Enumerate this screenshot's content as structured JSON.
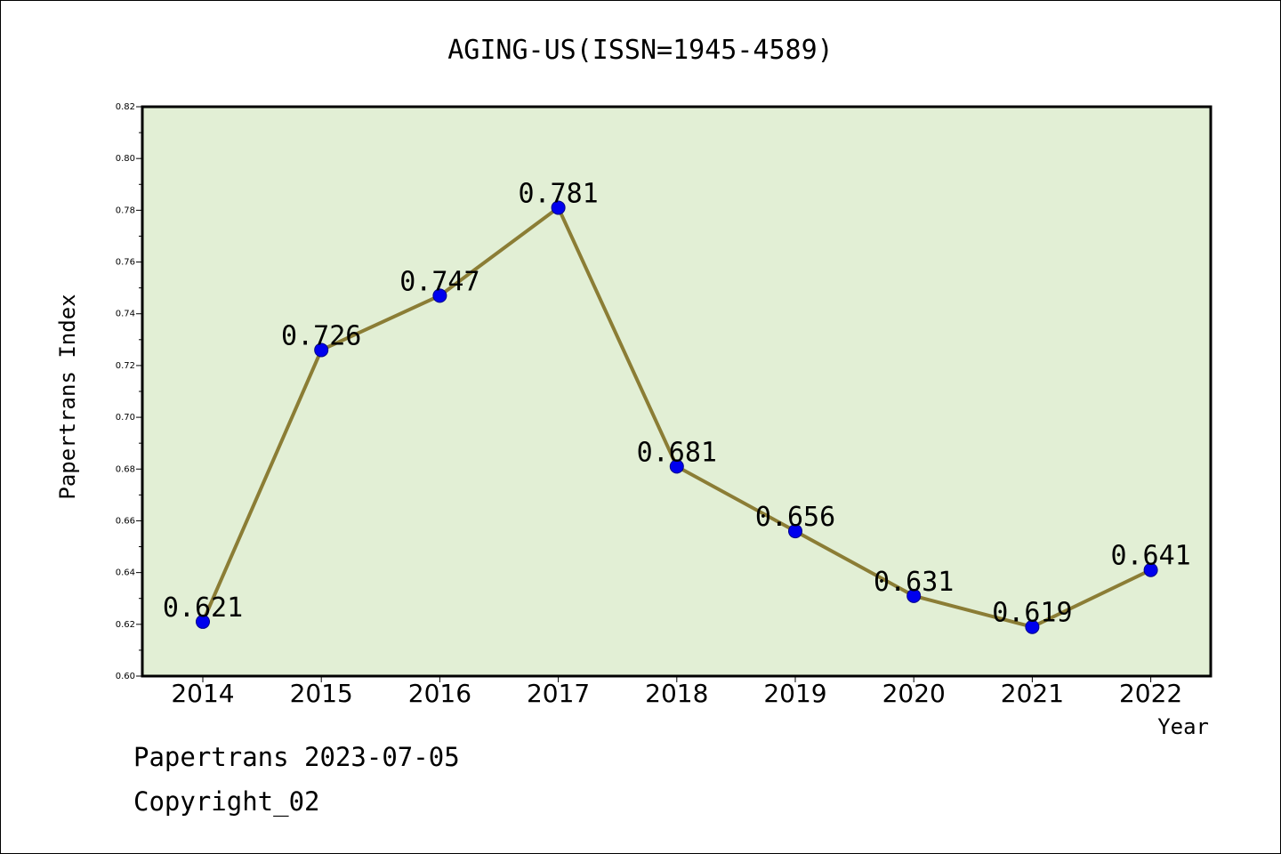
{
  "chart_data": {
    "type": "line",
    "title": "AGING-US(ISSN=1945-4589)",
    "xlabel": "Year",
    "ylabel": "Papertrans Index",
    "x": [
      "2014",
      "2015",
      "2016",
      "2017",
      "2018",
      "2019",
      "2020",
      "2021",
      "2022"
    ],
    "values": [
      0.621,
      0.726,
      0.747,
      0.781,
      0.681,
      0.656,
      0.631,
      0.619,
      0.641
    ],
    "data_labels": [
      "0.621",
      "0.726",
      "0.747",
      "0.781",
      "0.681",
      "0.656",
      "0.631",
      "0.619",
      "0.641"
    ],
    "ylim": [
      0.6,
      0.82
    ],
    "yticks": [
      0.6,
      0.62,
      0.64,
      0.66,
      0.68,
      0.7,
      0.72,
      0.74,
      0.76,
      0.78,
      0.8,
      0.82
    ],
    "ytick_labels": [
      "0.60",
      "0.62",
      "0.64",
      "0.66",
      "0.68",
      "0.70",
      "0.72",
      "0.74",
      "0.76",
      "0.78",
      "0.80",
      "0.82"
    ],
    "grid": false,
    "legend": "none",
    "colors": {
      "plot_background": "#e2efd5",
      "line": "#8b7d35",
      "marker": "#0000ee"
    }
  },
  "footer": {
    "line1": "Papertrans 2023-07-05",
    "line2": "Copyright_02"
  }
}
